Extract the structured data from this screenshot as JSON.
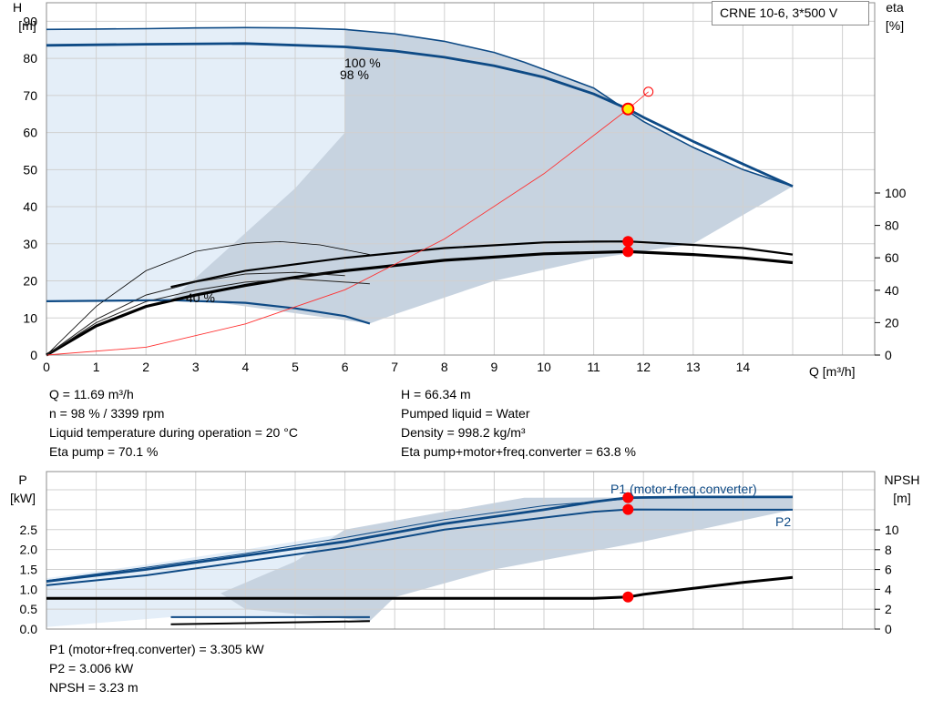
{
  "title": "CRNE 10-6, 3*500 V",
  "colors": {
    "curve": "#0e4a85",
    "fill_dark": "#c7d3e0",
    "fill_light": "#e4eef8",
    "grid": "#d0d0d0",
    "point": "#ff0000",
    "system": "#ff3030"
  },
  "labels": {
    "h_axis": "H",
    "h_unit": "[m]",
    "eta_axis": "eta",
    "eta_unit": "[%]",
    "q_axis": "Q [m³/h]",
    "p_axis": "P",
    "p_unit": "[kW]",
    "npsh_axis": "NPSH",
    "npsh_unit": "[m]",
    "speed_100": "100 %",
    "speed_98": "98 %",
    "speed_40": "40 %",
    "p1_curve": "P1 (motor+freq.converter)",
    "p2_curve": "P2"
  },
  "info_top_left": [
    "Q = 11.69 m³/h",
    "n = 98 % / 3399 rpm",
    "Liquid temperature during operation = 20 °C",
    "Eta pump = 70.1 %"
  ],
  "info_top_right": [
    "H = 66.34 m",
    "Pumped liquid = Water",
    "Density = 998.2 kg/m³",
    "Eta pump+motor+freq.converter = 63.8 %"
  ],
  "info_bottom": [
    "P1 (motor+freq.converter) = 3.305 kW",
    "P2 = 3.006 kW",
    "NPSH = 3.23 m"
  ],
  "chart_data": [
    {
      "type": "line",
      "title": "CRNE 10-6, 3*500 V",
      "xlabel": "Q [m³/h]",
      "ylabel": "H [m]",
      "y2label": "eta [%]",
      "xlim": [
        0,
        15
      ],
      "ylim": [
        0,
        95
      ],
      "y2lim": [
        0,
        100
      ],
      "x_ticks": [
        0,
        1,
        2,
        3,
        4,
        5,
        6,
        7,
        8,
        9,
        10,
        11,
        12,
        13,
        14
      ],
      "y_ticks": [
        0,
        10,
        20,
        30,
        40,
        50,
        60,
        70,
        80,
        90
      ],
      "y2_ticks": [
        0,
        20,
        40,
        60,
        80,
        100
      ],
      "grid": true,
      "series": [
        {
          "name": "100 %",
          "axis": "H",
          "x": [
            0,
            1,
            2,
            3,
            4,
            5,
            6,
            7,
            8,
            9,
            9.6,
            11,
            12,
            13,
            14,
            15
          ],
          "y": [
            87.8,
            87.9,
            88.0,
            88.2,
            88.3,
            88.2,
            87.8,
            86.6,
            84.6,
            81.6,
            79,
            72,
            63,
            56,
            50,
            45.5
          ]
        },
        {
          "name": "98 %",
          "axis": "H",
          "x": [
            0,
            2,
            4,
            6,
            7,
            8,
            9,
            10,
            11,
            11.69,
            12,
            13,
            14,
            15
          ],
          "y": [
            83.5,
            83.8,
            84.0,
            83.1,
            82,
            80.3,
            78,
            74.9,
            70.4,
            66.34,
            64.1,
            57.6,
            51.5,
            45.5
          ]
        },
        {
          "name": "40 %",
          "axis": "H",
          "x": [
            0,
            2.5,
            4,
            5,
            6,
            6.5
          ],
          "y": [
            14.5,
            14.8,
            14.1,
            12.6,
            10.5,
            8.5
          ]
        },
        {
          "name": "",
          "axis": "eta",
          "x": [
            2.5,
            4,
            6,
            8,
            10,
            11,
            11.69,
            13,
            14,
            15
          ],
          "y": [
            42,
            52,
            60,
            66,
            69.5,
            70,
            70.1,
            68,
            66,
            62
          ]
        },
        {
          "name": "",
          "axis": "eta",
          "x": [
            0,
            1,
            2,
            3,
            4,
            5,
            6,
            8,
            10,
            11.69,
            13,
            14,
            15
          ],
          "y": [
            0,
            18,
            30,
            37,
            43,
            48,
            52,
            58.5,
            62.5,
            63.8,
            62,
            60,
            57
          ]
        },
        {
          "name": "",
          "axis": "eta",
          "x": [
            0,
            1,
            2,
            3,
            4,
            4.7,
            5.5,
            6.5
          ],
          "y": [
            0,
            30,
            52,
            64,
            69,
            70,
            68,
            62
          ]
        },
        {
          "name": "",
          "axis": "H",
          "x": [
            0,
            2,
            4,
            6,
            8,
            10,
            11.69,
            12.1
          ],
          "y": [
            0,
            2.1,
            8.4,
            17.6,
            31.3,
            48.9,
            66.34,
            71
          ]
        }
      ],
      "operating_point": {
        "Q": 11.69,
        "H": 66.34,
        "eta_pump": 70.1,
        "eta_total": 63.8
      }
    },
    {
      "type": "line",
      "xlim": [
        0,
        15
      ],
      "ylim": [
        0,
        3.4
      ],
      "y2lim": [
        0,
        13.6
      ],
      "ylabel": "P [kW]",
      "y2label": "NPSH [m]",
      "y_ticks": [
        0.0,
        0.5,
        1.0,
        1.5,
        2.0,
        2.5
      ],
      "y2_ticks": [
        0,
        2,
        4,
        6,
        8,
        10
      ],
      "grid": true,
      "series": [
        {
          "name": "P1 (motor+freq.converter)",
          "axis": "P",
          "x": [
            0,
            2,
            4,
            6,
            8,
            10,
            11,
            11.69,
            13,
            14,
            15
          ],
          "y": [
            1.2,
            1.5,
            1.85,
            2.2,
            2.65,
            3.0,
            3.2,
            3.305,
            3.32,
            3.32,
            3.32
          ]
        },
        {
          "name": "P2",
          "axis": "P",
          "x": [
            0,
            2,
            4,
            6,
            8,
            10,
            11,
            11.69,
            13,
            14,
            15
          ],
          "y": [
            1.1,
            1.35,
            1.7,
            2.05,
            2.5,
            2.8,
            2.95,
            3.006,
            3.0,
            3.0,
            3.0
          ]
        },
        {
          "name": "",
          "axis": "NPSH",
          "x": [
            0,
            2,
            4,
            6,
            8,
            10,
            11,
            11.69,
            12,
            13,
            14,
            15
          ],
          "y": [
            3.1,
            3.1,
            3.1,
            3.1,
            3.1,
            3.1,
            3.1,
            3.23,
            3.5,
            4.1,
            4.7,
            5.2
          ]
        }
      ],
      "operating_point": {
        "Q": 11.69,
        "P1": 3.305,
        "P2": 3.006,
        "NPSH": 3.23
      }
    }
  ]
}
